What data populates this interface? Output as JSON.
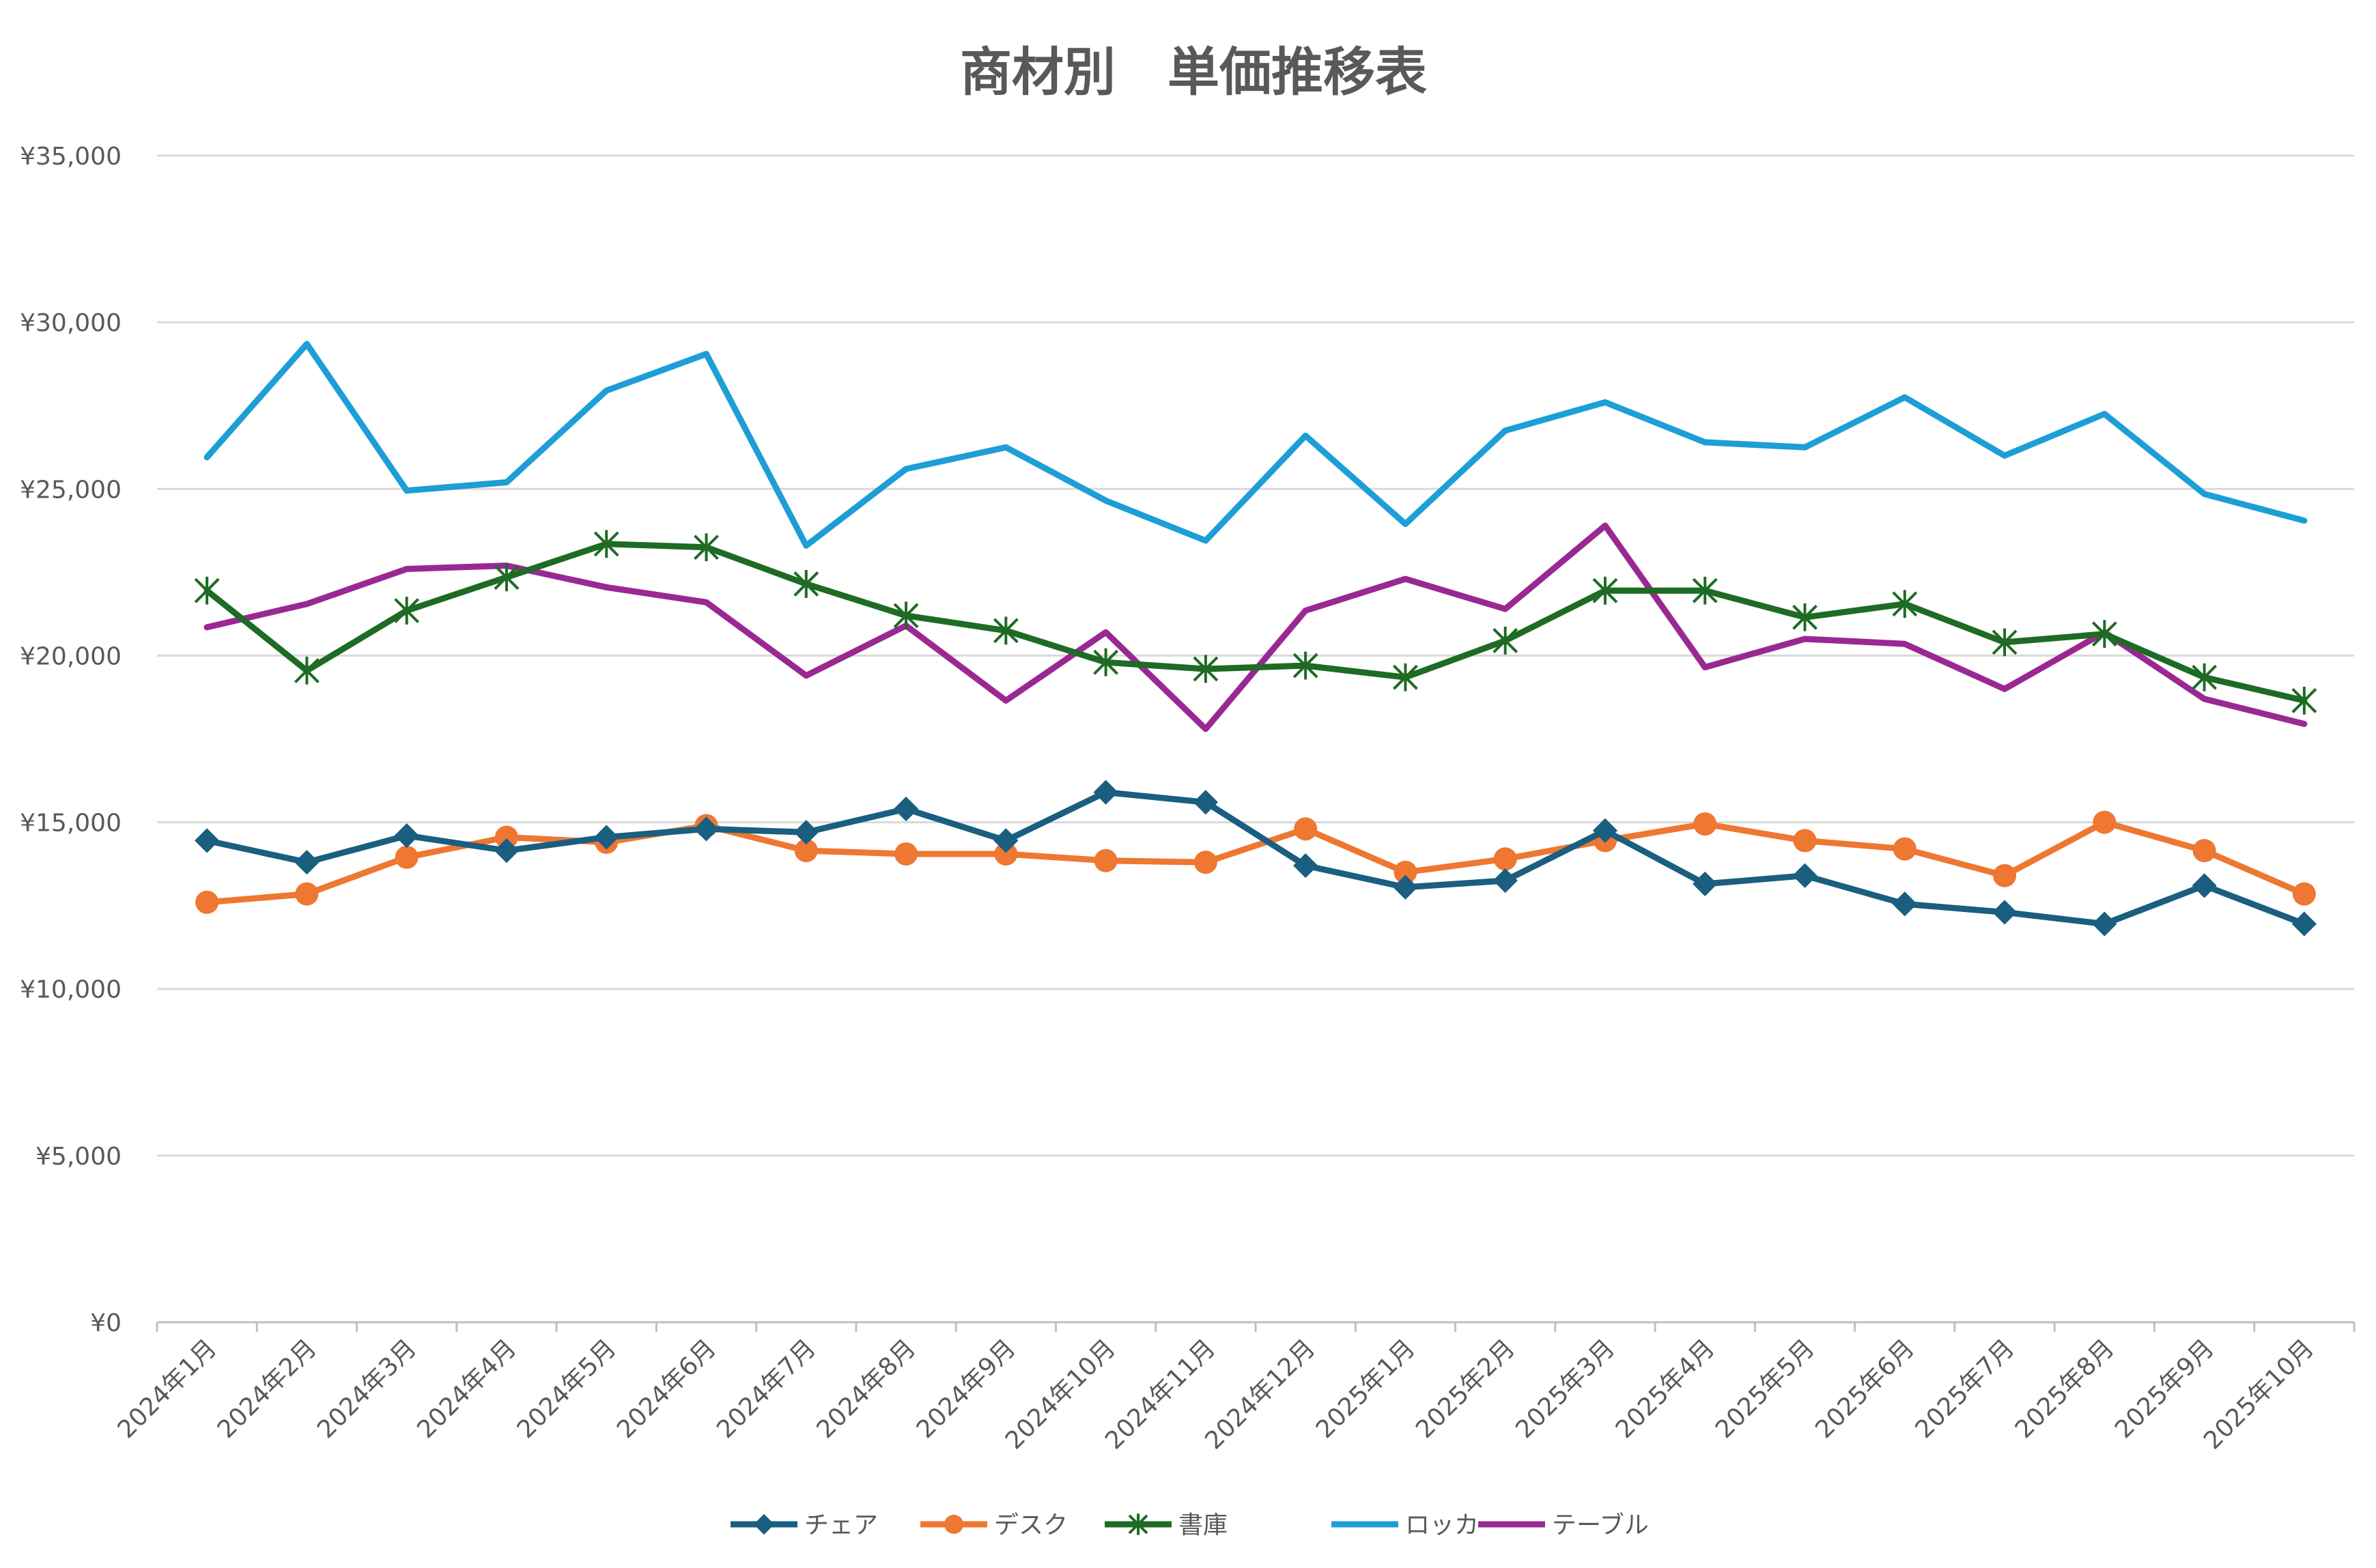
{
  "chart_data": {
    "type": "line",
    "title": "商材別　単価推移表",
    "xlabel": "",
    "ylabel": "",
    "ylim": [
      0,
      35000
    ],
    "yticks": [
      0,
      5000,
      10000,
      15000,
      20000,
      25000,
      30000,
      35000
    ],
    "ytick_labels": [
      "¥0",
      "¥5,000",
      "¥10,000",
      "¥15,000",
      "¥20,000",
      "¥25,000",
      "¥30,000",
      "¥35,000"
    ],
    "grid": true,
    "legend_position": "bottom",
    "categories": [
      "2024年1月",
      "2024年2月",
      "2024年3月",
      "2024年4月",
      "2024年5月",
      "2024年6月",
      "2024年7月",
      "2024年8月",
      "2024年9月",
      "2024年10月",
      "2024年11月",
      "2024年12月",
      "2025年1月",
      "2025年2月",
      "2025年3月",
      "2025年4月",
      "2025年5月",
      "2025年6月",
      "2025年7月",
      "2025年8月",
      "2025年9月",
      "2025年10月"
    ],
    "series": [
      {
        "name": "チェア",
        "color": "#1a5e80",
        "marker": "diamond",
        "values": [
          14450,
          13800,
          14600,
          14150,
          14550,
          14800,
          14700,
          15400,
          14450,
          15900,
          15600,
          13700,
          13050,
          13250,
          14750,
          13150,
          13400,
          12550,
          12300,
          11950,
          13100,
          11950
        ]
      },
      {
        "name": "デスク",
        "color": "#ee7732",
        "marker": "circle",
        "values": [
          12600,
          12850,
          13950,
          14550,
          14400,
          14900,
          14150,
          14050,
          14050,
          13850,
          13800,
          14800,
          13500,
          13900,
          14450,
          14950,
          14450,
          14200,
          13400,
          15000,
          14150,
          12850
        ]
      },
      {
        "name": "書庫",
        "color": "#1e6b24",
        "marker": "star",
        "values": [
          21950,
          19550,
          21350,
          22350,
          23350,
          23250,
          22150,
          21200,
          20750,
          19800,
          19600,
          19700,
          19350,
          20450,
          21950,
          21950,
          21150,
          21550,
          20400,
          20650,
          19350,
          18650
        ]
      },
      {
        "name": "ロッカー",
        "color": "#1d9ed6",
        "marker": "none",
        "values": [
          25950,
          29350,
          24950,
          25200,
          27950,
          29050,
          23300,
          25600,
          26250,
          24650,
          23450,
          26600,
          23950,
          26750,
          27600,
          26400,
          26250,
          27750,
          26000,
          27250,
          24850,
          24050
        ]
      },
      {
        "name": "テーブル",
        "color": "#9a2893",
        "marker": "none",
        "values": [
          20850,
          21550,
          22600,
          22700,
          22050,
          21600,
          19400,
          20900,
          18650,
          20700,
          17800,
          21350,
          22300,
          21400,
          23900,
          19650,
          20500,
          20350,
          19000,
          20700,
          18700,
          17950
        ]
      }
    ]
  }
}
